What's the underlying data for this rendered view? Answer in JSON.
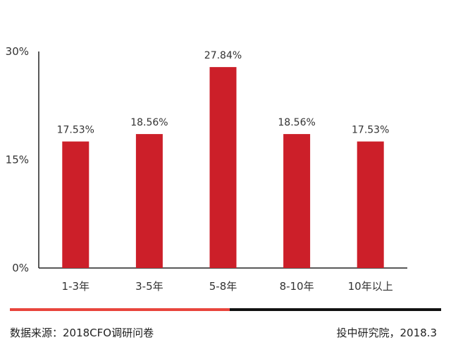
{
  "chart_data": {
    "type": "bar",
    "categories": [
      "1-3年",
      "3-5年",
      "5-8年",
      "8-10年",
      "10年以上"
    ],
    "values": [
      17.53,
      18.56,
      27.84,
      18.56,
      17.53
    ],
    "value_labels": [
      "17.53%",
      "18.56%",
      "27.84%",
      "18.56%",
      "17.53%"
    ],
    "y_ticks": [
      {
        "value": 0,
        "label": "0%"
      },
      {
        "value": 15,
        "label": "15%"
      },
      {
        "value": 30,
        "label": "30%"
      }
    ],
    "ylim": [
      0,
      30
    ],
    "grid": false,
    "bar_color": "#cc1f29",
    "title": "",
    "xlabel": "",
    "ylabel": ""
  },
  "divider": {
    "left_color": "#e8453c",
    "right_color": "#111111"
  },
  "footer": {
    "source": "数据来源：2018CFO调研问卷",
    "credit": "投中研究院，2018.3"
  }
}
